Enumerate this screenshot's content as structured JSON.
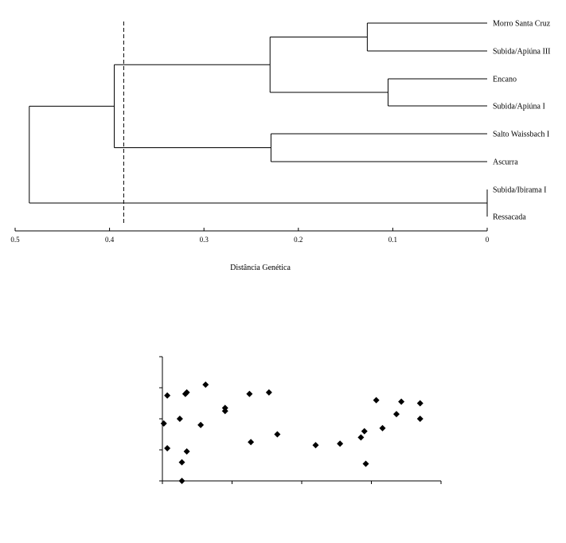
{
  "chart_data": [
    {
      "type": "dendrogram",
      "xlabel": "Distância Genética",
      "x_axis": {
        "range": [
          0.5,
          0
        ],
        "reversed": true,
        "ticks": [
          "0.5",
          "0.4",
          "0.3",
          "0.2",
          "0.1",
          "0"
        ],
        "tick_values": [
          0.5,
          0.4,
          0.3,
          0.2,
          0.1,
          0
        ]
      },
      "cutoff_line": {
        "value": 0.385,
        "style": "dashed"
      },
      "leaves": [
        "Morro Santa Cruz",
        "Subida/Apiúna III",
        "Encano",
        "Subida/Apiúna I",
        "Salto Waissbach I",
        "Ascurra",
        "Subida/Ibirama I",
        "Ressacada"
      ],
      "merges": [
        {
          "a": "Morro Santa Cruz",
          "b": "Subida/Apiúna III",
          "height": 0.127
        },
        {
          "a": "Encano",
          "b": "Subida/Apiúna I",
          "height": 0.105
        },
        {
          "a": "Salto Waissbach I",
          "b": "Ascurra",
          "height": 0.229
        },
        {
          "a": "Subida/Ibirama I",
          "b": "Ressacada",
          "height": 0.0
        },
        {
          "a": "cluster(Morro Santa Cruz, Subida/Apiúna III)",
          "b": "cluster(Encano, Subida/Apiúna I)",
          "height": 0.23
        },
        {
          "a": "cluster(Morro Santa Cruz ... Subida/Apiúna I)",
          "b": "cluster(Salto Waissbach I, Ascurra)",
          "height": 0.395
        },
        {
          "a": "cluster(six populations)",
          "b": "cluster(Subida/Ibirama I, Ressacada)",
          "height": 0.485
        }
      ]
    },
    {
      "type": "scatter",
      "xlim": [
        0,
        4
      ],
      "ylim": [
        0,
        4
      ],
      "x_ticks": [
        0,
        1,
        2,
        3,
        4
      ],
      "y_ticks": [
        0,
        1,
        2,
        3,
        4
      ],
      "marker": "diamond",
      "points": [
        [
          0.02,
          1.85
        ],
        [
          0.07,
          2.75
        ],
        [
          0.07,
          1.05
        ],
        [
          0.25,
          2.0
        ],
        [
          0.28,
          0.6
        ],
        [
          0.28,
          0.0
        ],
        [
          0.33,
          2.8
        ],
        [
          0.35,
          2.85
        ],
        [
          0.35,
          0.95
        ],
        [
          0.55,
          1.8
        ],
        [
          0.62,
          3.1
        ],
        [
          0.9,
          2.35
        ],
        [
          0.9,
          2.25
        ],
        [
          1.25,
          2.8
        ],
        [
          1.27,
          1.25
        ],
        [
          1.53,
          2.85
        ],
        [
          1.65,
          1.5
        ],
        [
          2.2,
          1.15
        ],
        [
          2.55,
          1.2
        ],
        [
          2.85,
          1.4
        ],
        [
          2.9,
          1.6
        ],
        [
          2.92,
          0.55
        ],
        [
          3.07,
          2.6
        ],
        [
          3.16,
          1.7
        ],
        [
          3.36,
          2.15
        ],
        [
          3.43,
          2.55
        ],
        [
          3.7,
          2.5
        ],
        [
          3.7,
          2.0
        ]
      ]
    }
  ]
}
